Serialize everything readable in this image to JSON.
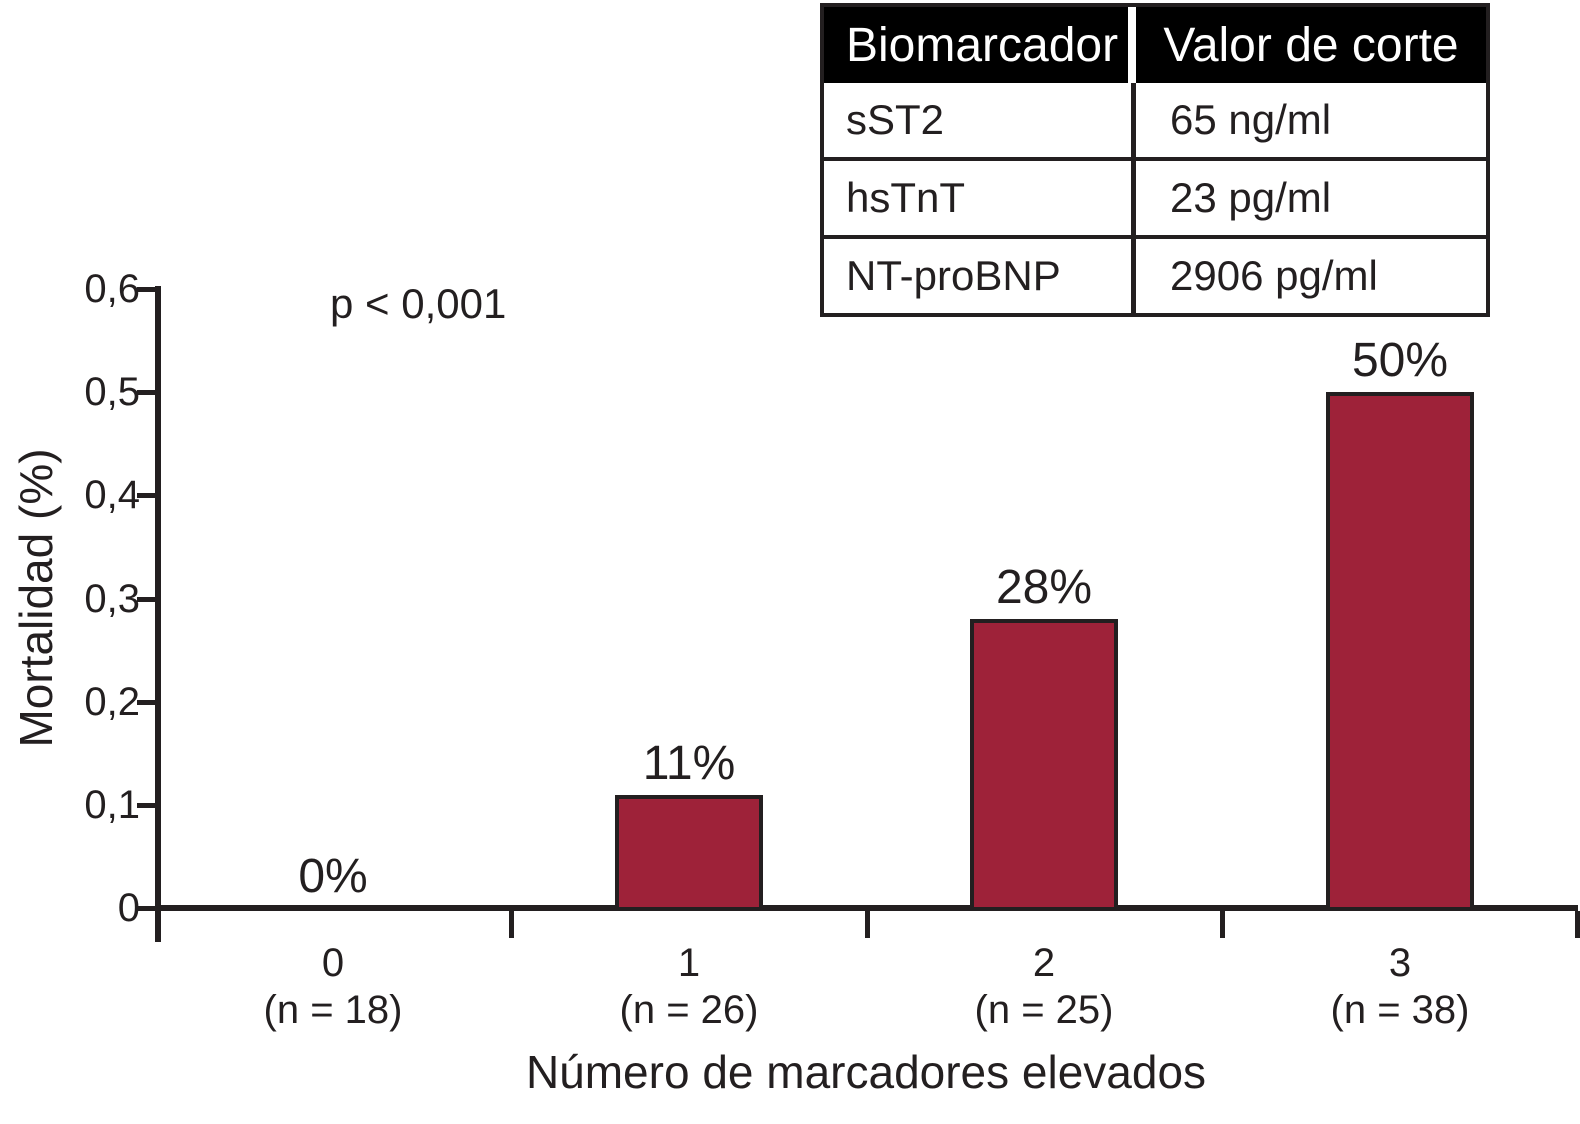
{
  "chart_data": {
    "type": "bar",
    "title": "",
    "xlabel": "Número de marcadores elevados",
    "ylabel": "Mortalidad (%)",
    "annotation": "p < 0,001",
    "categories": [
      {
        "label": "0",
        "sublabel": "(n = 18)",
        "value": 0,
        "value_label": "0%"
      },
      {
        "label": "1",
        "sublabel": "(n = 26)",
        "value": 0.11,
        "value_label": "11%"
      },
      {
        "label": "2",
        "sublabel": "(n = 25)",
        "value": 0.28,
        "value_label": "28%"
      },
      {
        "label": "3",
        "sublabel": "(n = 38)",
        "value": 0.5,
        "value_label": "50%"
      }
    ],
    "y_ticks": [
      {
        "label": "0",
        "value": 0
      },
      {
        "label": "0,1",
        "value": 0.1
      },
      {
        "label": "0,2",
        "value": 0.2
      },
      {
        "label": "0,3",
        "value": 0.3
      },
      {
        "label": "0,4",
        "value": 0.4
      },
      {
        "label": "0,5",
        "value": 0.5
      },
      {
        "label": "0,6",
        "value": 0.6
      }
    ],
    "ylim": [
      0,
      0.6
    ],
    "grid": false,
    "bar_color": "#9e2239",
    "axis_color": "#231f20"
  },
  "table": {
    "headers": [
      "Biomarcador",
      "Valor de corte"
    ],
    "rows": [
      [
        "sST2",
        "65 ng/ml"
      ],
      [
        "hsTnT",
        "23 pg/ml"
      ],
      [
        "NT-proBNP",
        "2906 pg/ml"
      ]
    ]
  }
}
